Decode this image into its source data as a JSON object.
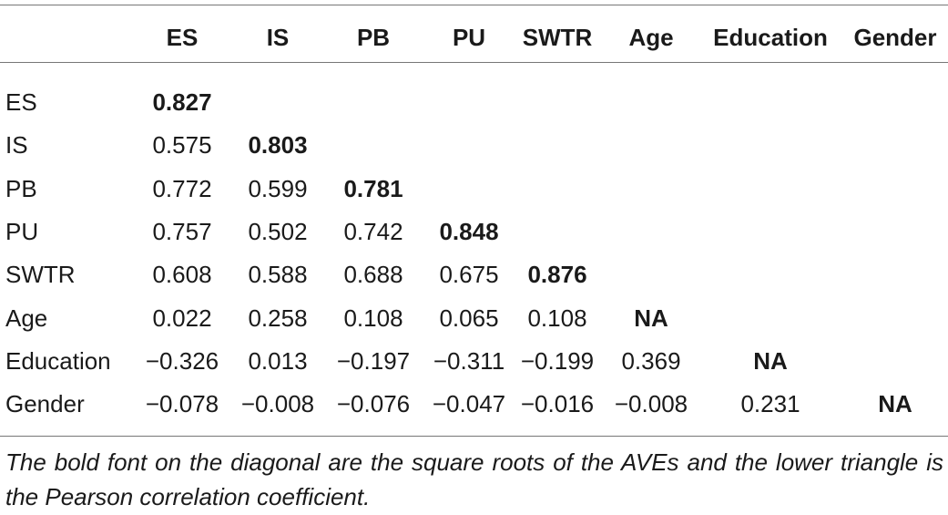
{
  "table": {
    "headers": [
      "ES",
      "IS",
      "PB",
      "PU",
      "SWTR",
      "Age",
      "Education",
      "Gender"
    ],
    "rows": [
      {
        "label": "ES",
        "values": [
          "0.827"
        ]
      },
      {
        "label": "IS",
        "values": [
          "0.575",
          "0.803"
        ]
      },
      {
        "label": "PB",
        "values": [
          "0.772",
          "0.599",
          "0.781"
        ]
      },
      {
        "label": "PU",
        "values": [
          "0.757",
          "0.502",
          "0.742",
          "0.848"
        ]
      },
      {
        "label": "SWTR",
        "values": [
          "0.608",
          "0.588",
          "0.688",
          "0.675",
          "0.876"
        ]
      },
      {
        "label": "Age",
        "values": [
          "0.022",
          "0.258",
          "0.108",
          "0.065",
          "0.108",
          "NA"
        ]
      },
      {
        "label": "Education",
        "values": [
          "−0.326",
          "0.013",
          "−0.197",
          "−0.311",
          "−0.199",
          "0.369",
          "NA"
        ]
      },
      {
        "label": "Gender",
        "values": [
          "−0.078",
          "−0.008",
          "−0.076",
          "−0.047",
          "−0.016",
          "−0.008",
          "0.231",
          "NA"
        ]
      }
    ],
    "footnote": "The bold font on the diagonal are the square roots of the AVEs and the lower triangle is the Pearson correlation coefficient."
  }
}
